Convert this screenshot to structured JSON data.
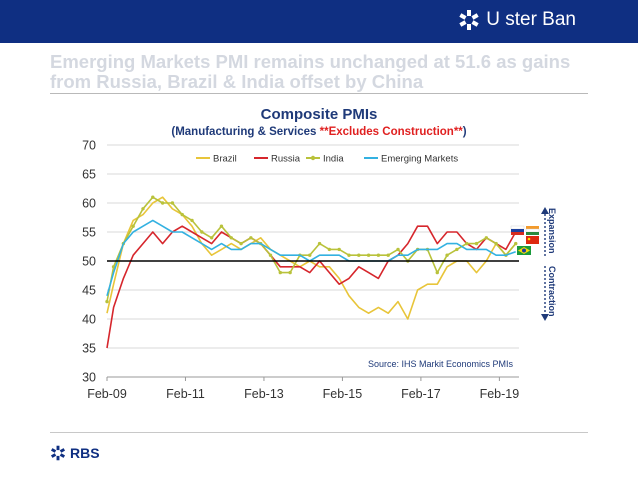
{
  "brand": {
    "name": "U ster Ban",
    "footer_name": "RBS"
  },
  "headline": "Emerging Markets PMI remains unchanged at 51.6 as gains from Russia, Brazil & India offset by China",
  "colors": {
    "header_bg": "#0f2f82",
    "brazil": "#e8c53a",
    "russia": "#d6262c",
    "india": "#b9c23b",
    "emerging": "#33b1e1"
  },
  "chart_data": {
    "type": "line",
    "title": "Composite PMIs",
    "subtitle_prefix": "(Manufacturing & Services ",
    "subtitle_highlight": "**Excludes Construction**",
    "subtitle_suffix": ")",
    "ylim": [
      30,
      70
    ],
    "yticks": [
      30,
      35,
      40,
      45,
      50,
      55,
      60,
      65,
      70
    ],
    "x_ticks": [
      "Feb-09",
      "Feb-11",
      "Feb-13",
      "Feb-15",
      "Feb-17",
      "Feb-19"
    ],
    "x_range": [
      2009.083,
      2019.583
    ],
    "reference_line": 50,
    "legend_position": "top",
    "annotations": {
      "expansion": "Expansion",
      "contraction": "Contraction",
      "source": "Source: IHS Markit Economics PMIs"
    },
    "series": [
      {
        "name": "Brazil",
        "color": "#e8c53a",
        "points": [
          [
            2009.083,
            41
          ],
          [
            2009.25,
            46
          ],
          [
            2009.5,
            53
          ],
          [
            2009.75,
            57
          ],
          [
            2010.0,
            58
          ],
          [
            2010.25,
            60
          ],
          [
            2010.5,
            61
          ],
          [
            2010.75,
            59
          ],
          [
            2011.0,
            58
          ],
          [
            2011.25,
            56
          ],
          [
            2011.5,
            53
          ],
          [
            2011.75,
            51
          ],
          [
            2012.0,
            52
          ],
          [
            2012.25,
            53
          ],
          [
            2012.5,
            52
          ],
          [
            2012.75,
            53
          ],
          [
            2013.0,
            54
          ],
          [
            2013.25,
            52
          ],
          [
            2013.5,
            51
          ],
          [
            2013.75,
            50
          ],
          [
            2014.0,
            49
          ],
          [
            2014.25,
            50
          ],
          [
            2014.5,
            49
          ],
          [
            2014.75,
            49
          ],
          [
            2015.0,
            47
          ],
          [
            2015.25,
            44
          ],
          [
            2015.5,
            42
          ],
          [
            2015.75,
            41
          ],
          [
            2016.0,
            42
          ],
          [
            2016.25,
            41
          ],
          [
            2016.5,
            43
          ],
          [
            2016.75,
            40
          ],
          [
            2017.0,
            45
          ],
          [
            2017.25,
            46
          ],
          [
            2017.5,
            46
          ],
          [
            2017.75,
            49
          ],
          [
            2018.0,
            50
          ],
          [
            2018.25,
            50
          ],
          [
            2018.5,
            48
          ],
          [
            2018.75,
            50
          ],
          [
            2019.0,
            53
          ],
          [
            2019.25,
            51
          ],
          [
            2019.5,
            53
          ]
        ]
      },
      {
        "name": "Russia",
        "color": "#d6262c",
        "points": [
          [
            2009.083,
            35
          ],
          [
            2009.25,
            42
          ],
          [
            2009.5,
            47
          ],
          [
            2009.75,
            51
          ],
          [
            2010.0,
            53
          ],
          [
            2010.25,
            55
          ],
          [
            2010.5,
            53
          ],
          [
            2010.75,
            55
          ],
          [
            2011.0,
            56
          ],
          [
            2011.25,
            55
          ],
          [
            2011.5,
            54
          ],
          [
            2011.75,
            53
          ],
          [
            2012.0,
            55
          ],
          [
            2012.25,
            54
          ],
          [
            2012.5,
            53
          ],
          [
            2012.75,
            54
          ],
          [
            2013.0,
            53
          ],
          [
            2013.25,
            51
          ],
          [
            2013.5,
            49
          ],
          [
            2013.75,
            49
          ],
          [
            2014.0,
            49
          ],
          [
            2014.25,
            48
          ],
          [
            2014.5,
            50
          ],
          [
            2014.75,
            48
          ],
          [
            2015.0,
            46
          ],
          [
            2015.25,
            47
          ],
          [
            2015.5,
            49
          ],
          [
            2015.75,
            48
          ],
          [
            2016.0,
            47
          ],
          [
            2016.25,
            50
          ],
          [
            2016.5,
            51
          ],
          [
            2016.75,
            53
          ],
          [
            2017.0,
            56
          ],
          [
            2017.25,
            56
          ],
          [
            2017.5,
            53
          ],
          [
            2017.75,
            55
          ],
          [
            2018.0,
            55
          ],
          [
            2018.25,
            53
          ],
          [
            2018.5,
            52
          ],
          [
            2018.75,
            54
          ],
          [
            2019.0,
            53
          ],
          [
            2019.25,
            52
          ],
          [
            2019.5,
            55
          ]
        ]
      },
      {
        "name": "India",
        "color": "#b9c23b",
        "points": [
          [
            2009.083,
            43
          ],
          [
            2009.25,
            49
          ],
          [
            2009.5,
            53
          ],
          [
            2009.75,
            56
          ],
          [
            2010.0,
            59
          ],
          [
            2010.25,
            61
          ],
          [
            2010.5,
            60
          ],
          [
            2010.75,
            60
          ],
          [
            2011.0,
            58
          ],
          [
            2011.25,
            57
          ],
          [
            2011.5,
            55
          ],
          [
            2011.75,
            54
          ],
          [
            2012.0,
            56
          ],
          [
            2012.25,
            54
          ],
          [
            2012.5,
            53
          ],
          [
            2012.75,
            54
          ],
          [
            2013.0,
            53
          ],
          [
            2013.25,
            51
          ],
          [
            2013.5,
            48
          ],
          [
            2013.75,
            48
          ],
          [
            2014.0,
            51
          ],
          [
            2014.25,
            51
          ],
          [
            2014.5,
            53
          ],
          [
            2014.75,
            52
          ],
          [
            2015.0,
            52
          ],
          [
            2015.25,
            51
          ],
          [
            2015.5,
            51
          ],
          [
            2015.75,
            51
          ],
          [
            2016.0,
            51
          ],
          [
            2016.25,
            51
          ],
          [
            2016.5,
            52
          ],
          [
            2016.75,
            50
          ],
          [
            2017.0,
            52
          ],
          [
            2017.25,
            52
          ],
          [
            2017.5,
            48
          ],
          [
            2017.75,
            51
          ],
          [
            2018.0,
            52
          ],
          [
            2018.25,
            53
          ],
          [
            2018.5,
            53
          ],
          [
            2018.75,
            54
          ],
          [
            2019.0,
            53
          ],
          [
            2019.25,
            51
          ],
          [
            2019.5,
            53
          ]
        ]
      },
      {
        "name": "Emerging Markets",
        "color": "#33b1e1",
        "points": [
          [
            2009.083,
            44
          ],
          [
            2009.25,
            48
          ],
          [
            2009.5,
            53
          ],
          [
            2009.75,
            55
          ],
          [
            2010.0,
            56
          ],
          [
            2010.25,
            57
          ],
          [
            2010.5,
            56
          ],
          [
            2010.75,
            55
          ],
          [
            2011.0,
            55
          ],
          [
            2011.25,
            54
          ],
          [
            2011.5,
            53
          ],
          [
            2011.75,
            52
          ],
          [
            2012.0,
            53
          ],
          [
            2012.25,
            52
          ],
          [
            2012.5,
            52
          ],
          [
            2012.75,
            53
          ],
          [
            2013.0,
            53
          ],
          [
            2013.25,
            52
          ],
          [
            2013.5,
            51
          ],
          [
            2013.75,
            51
          ],
          [
            2014.0,
            51
          ],
          [
            2014.25,
            50
          ],
          [
            2014.5,
            51
          ],
          [
            2014.75,
            51
          ],
          [
            2015.0,
            51
          ],
          [
            2015.25,
            50
          ],
          [
            2015.5,
            50
          ],
          [
            2015.75,
            50
          ],
          [
            2016.0,
            50
          ],
          [
            2016.25,
            50
          ],
          [
            2016.5,
            51
          ],
          [
            2016.75,
            51
          ],
          [
            2017.0,
            52
          ],
          [
            2017.25,
            52
          ],
          [
            2017.5,
            52
          ],
          [
            2017.75,
            53
          ],
          [
            2018.0,
            53
          ],
          [
            2018.25,
            52
          ],
          [
            2018.5,
            52
          ],
          [
            2018.75,
            52
          ],
          [
            2019.0,
            51
          ],
          [
            2019.25,
            51
          ],
          [
            2019.5,
            51.6
          ]
        ]
      }
    ]
  }
}
